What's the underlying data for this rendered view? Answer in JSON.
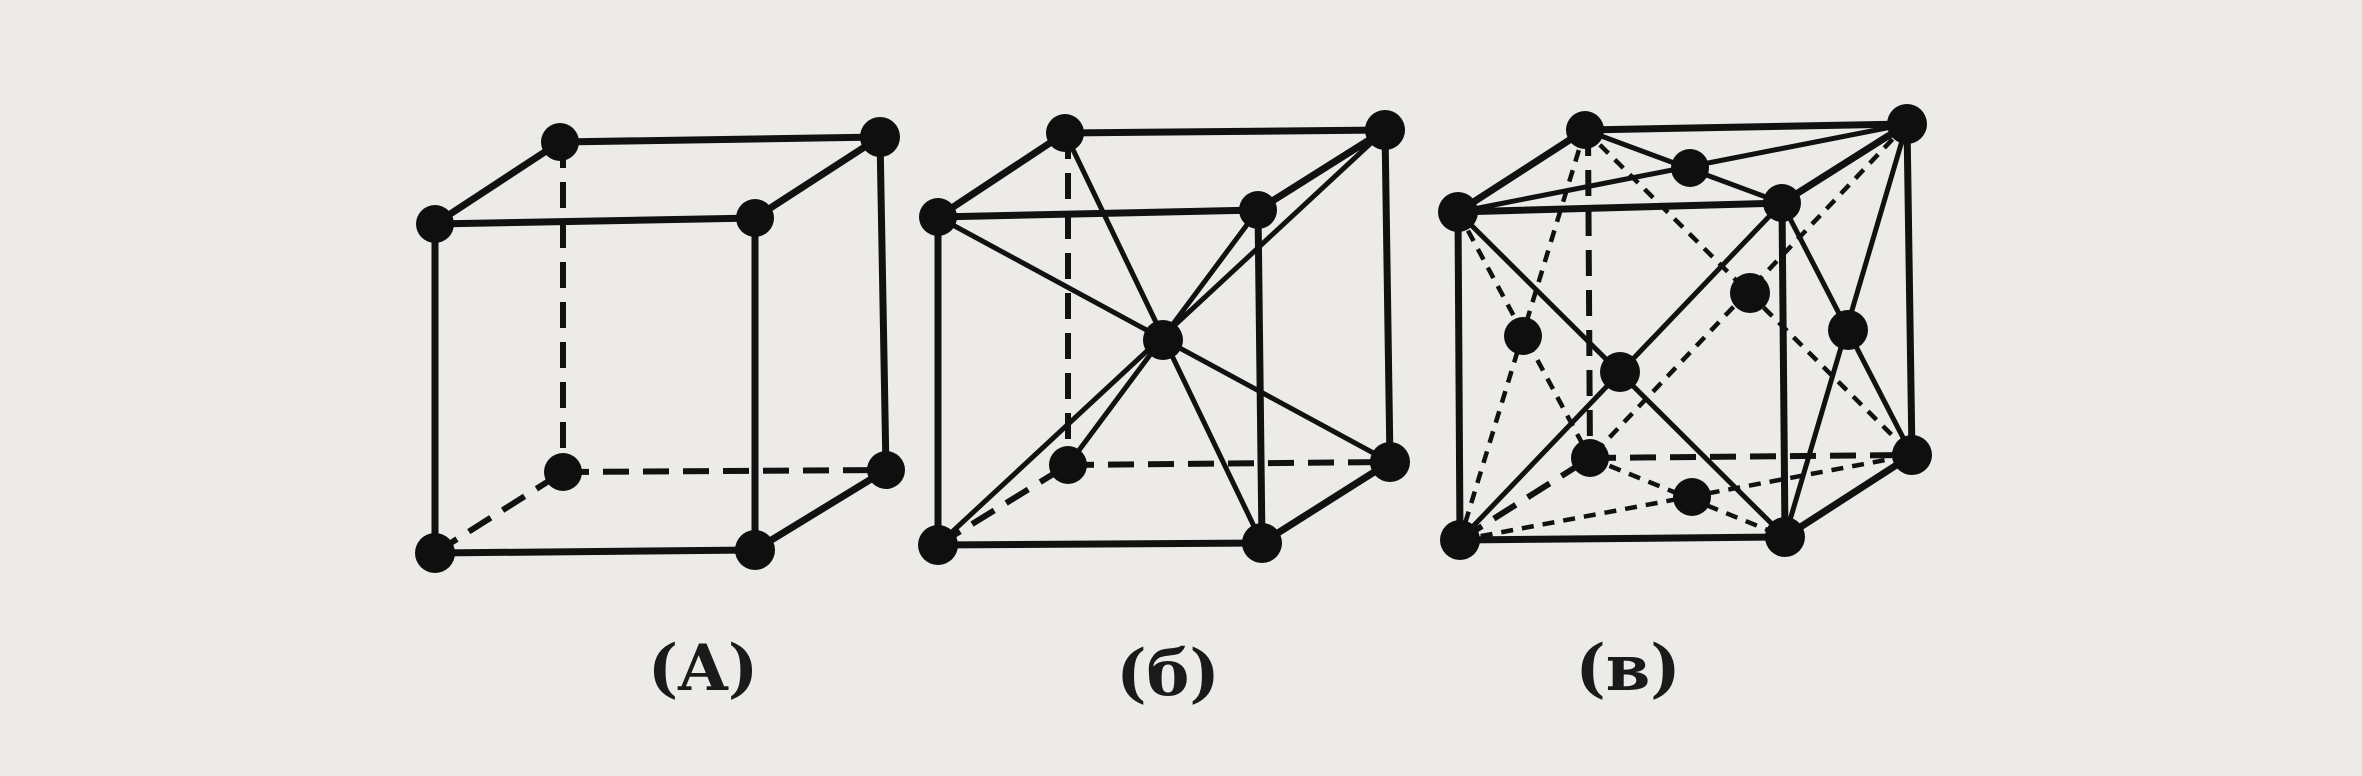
{
  "figures": [
    {
      "id": "A",
      "caption": "(A)"
    },
    {
      "id": "b",
      "caption": "(б)"
    },
    {
      "id": "v",
      "caption": "(в)"
    }
  ]
}
